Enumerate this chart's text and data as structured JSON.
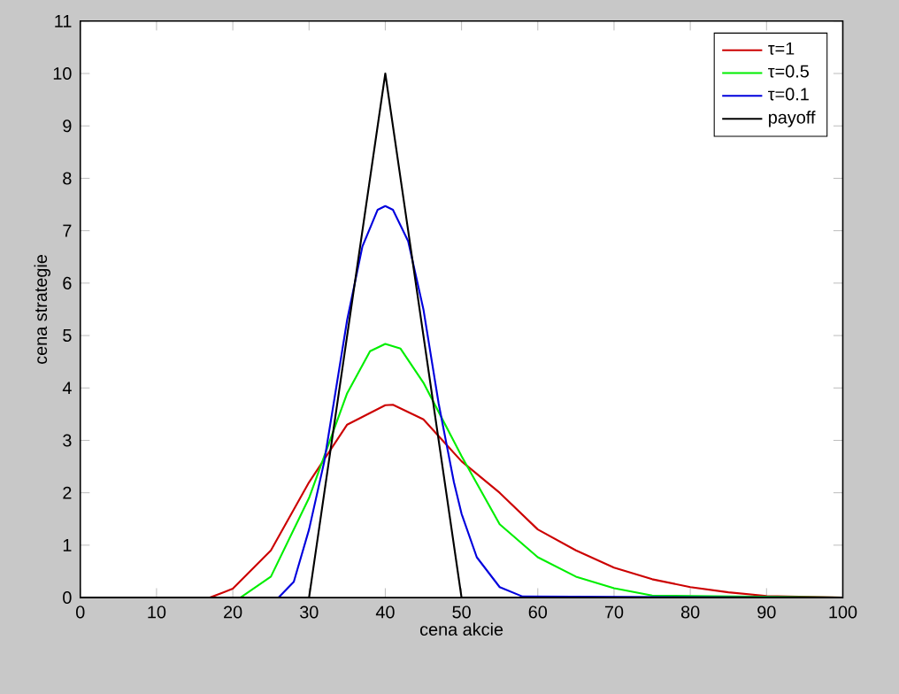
{
  "chart_data": {
    "type": "line",
    "xlabel": "cena akcie",
    "ylabel": "cena strategie",
    "xlim": [
      0,
      100
    ],
    "ylim": [
      0,
      11
    ],
    "xticks": [
      0,
      10,
      20,
      30,
      40,
      50,
      60,
      70,
      80,
      90,
      100
    ],
    "yticks": [
      0,
      1,
      2,
      3,
      4,
      5,
      6,
      7,
      8,
      9,
      10,
      11
    ],
    "legend": "top right",
    "marker": "none",
    "line_style": "solid",
    "grid": false,
    "series": [
      {
        "name": "τ=1",
        "color": "#cc0000",
        "x": [
          0,
          17,
          20,
          25,
          30,
          35,
          40,
          41,
          45,
          50,
          55,
          60,
          65,
          70,
          75,
          80,
          85,
          90,
          100
        ],
        "values": [
          0,
          0,
          0.17,
          0.9,
          2.2,
          3.3,
          3.67,
          3.68,
          3.4,
          2.6,
          2.0,
          1.3,
          0.9,
          0.57,
          0.35,
          0.2,
          0.1,
          0.03,
          0
        ]
      },
      {
        "name": "τ=0.5",
        "color": "#00ee00",
        "x": [
          0,
          21,
          25,
          30,
          35,
          38,
          40,
          42,
          45,
          50,
          55,
          60,
          65,
          70,
          75,
          100
        ],
        "values": [
          0,
          0,
          0.4,
          1.9,
          3.9,
          4.7,
          4.84,
          4.75,
          4.1,
          2.7,
          1.4,
          0.77,
          0.4,
          0.18,
          0.04,
          0
        ]
      },
      {
        "name": "τ=0.1",
        "color": "#0000dd",
        "x": [
          0,
          26,
          28,
          30,
          32,
          35,
          37,
          39,
          40,
          41,
          43,
          45,
          47,
          49,
          50,
          52,
          55,
          58,
          100
        ],
        "values": [
          0,
          0,
          0.3,
          1.3,
          2.6,
          5.3,
          6.7,
          7.4,
          7.47,
          7.4,
          6.8,
          5.5,
          3.7,
          2.2,
          1.6,
          0.77,
          0.2,
          0.02,
          0
        ]
      },
      {
        "name": "payoff",
        "color": "#000000",
        "x": [
          0,
          30,
          40,
          50,
          100
        ],
        "values": [
          0,
          0,
          10,
          0,
          0
        ]
      }
    ]
  }
}
